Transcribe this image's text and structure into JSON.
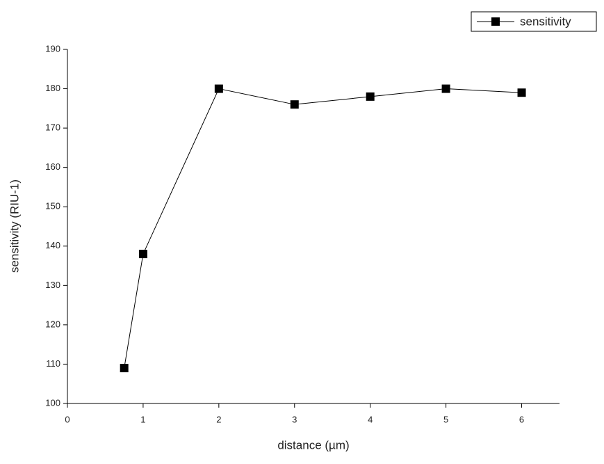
{
  "chart_data": {
    "type": "line",
    "x": [
      0.75,
      1,
      2,
      3,
      4,
      5,
      6
    ],
    "series": [
      {
        "name": "sensitivity",
        "color": "#000000",
        "values": [
          109,
          138,
          180,
          176,
          178,
          180,
          179
        ]
      }
    ],
    "xlabel": "distance (µm)",
    "ylabel": "sensitivity (RIU-1)",
    "xlim": [
      0,
      6.5
    ],
    "xticks": [
      0,
      1,
      2,
      3,
      4,
      5,
      6
    ],
    "ylim": [
      100,
      190
    ],
    "yticks": [
      100,
      110,
      120,
      130,
      140,
      150,
      160,
      170,
      180,
      190
    ],
    "marker": "square",
    "legend": "top-right"
  }
}
